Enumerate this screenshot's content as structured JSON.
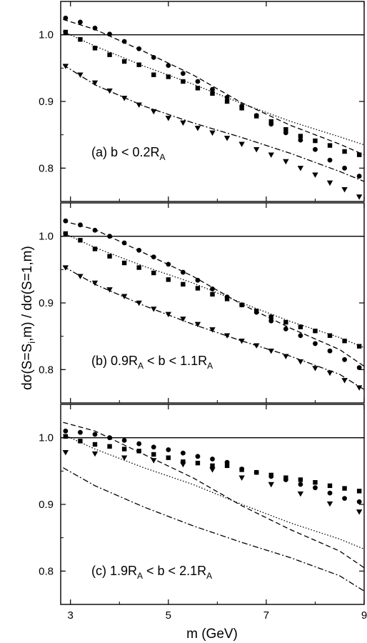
{
  "xlabel": "m (GeV)",
  "ylabel": "dσ(S=S_i,m) / dσ(S=1,m)",
  "ylabel_parts": {
    "pre": "dσ(S=S",
    "sub": "i",
    "post": ",m) / dσ(S=1,m)"
  },
  "colors": {
    "axes": "#000000",
    "data": "#000000",
    "background": "#ffffff"
  },
  "chart_data": [
    {
      "type": "scatter",
      "panel_label": {
        "pre": "(a)   b < 0.2R",
        "sub": "A",
        "post": ""
      },
      "xlim": [
        2.8,
        9.0
      ],
      "ylim": [
        0.75,
        1.05
      ],
      "xticks": [
        3,
        5,
        7,
        9
      ],
      "yticks": [
        0.8,
        0.9,
        1.0
      ],
      "xtick_labels": [
        "",
        "",
        "",
        ""
      ],
      "ytick_labels": [
        "0.8",
        "0.9",
        "1.0"
      ],
      "reference_line": 1.0,
      "curves": [
        {
          "style": "dashed",
          "x": [
            2.85,
            3.5,
            4.5,
            5.5,
            6.5,
            7.5,
            8.5,
            9.0
          ],
          "y": [
            1.023,
            1.008,
            0.975,
            0.94,
            0.898,
            0.864,
            0.836,
            0.82
          ]
        },
        {
          "style": "dotted",
          "x": [
            2.85,
            3.5,
            4.5,
            5.5,
            6.5,
            7.5,
            8.5,
            9.0
          ],
          "y": [
            1.005,
            0.983,
            0.953,
            0.926,
            0.897,
            0.87,
            0.847,
            0.835
          ]
        },
        {
          "style": "dashdot",
          "x": [
            2.85,
            3.5,
            4.5,
            5.5,
            6.5,
            7.5,
            8.5,
            9.0
          ],
          "y": [
            0.955,
            0.925,
            0.893,
            0.868,
            0.846,
            0.822,
            0.795,
            0.78
          ]
        }
      ],
      "series": [
        {
          "marker": "circle",
          "x": [
            2.9,
            3.2,
            3.5,
            3.8,
            4.1,
            4.4,
            4.7,
            5.0,
            5.3,
            5.6,
            5.9,
            6.2,
            6.5,
            6.8,
            7.1,
            7.4,
            7.7,
            8.0,
            8.3,
            8.6,
            8.9
          ],
          "y": [
            1.025,
            1.019,
            1.01,
            1.001,
            0.99,
            0.979,
            0.966,
            0.954,
            0.942,
            0.93,
            0.918,
            0.906,
            0.893,
            0.879,
            0.866,
            0.853,
            0.842,
            0.828,
            0.812,
            0.8,
            0.788
          ]
        },
        {
          "marker": "square",
          "x": [
            2.9,
            3.2,
            3.5,
            3.8,
            4.1,
            4.4,
            4.7,
            5.0,
            5.3,
            5.6,
            5.9,
            6.2,
            6.5,
            6.8,
            7.1,
            7.4,
            7.7,
            8.0,
            8.3,
            8.6,
            8.9
          ],
          "y": [
            1.004,
            0.993,
            0.98,
            0.97,
            0.96,
            0.955,
            0.94,
            0.937,
            0.93,
            0.92,
            0.912,
            0.9,
            0.89,
            0.878,
            0.87,
            0.858,
            0.848,
            0.841,
            0.834,
            0.825,
            0.82
          ]
        },
        {
          "marker": "triangle-down",
          "x": [
            2.9,
            3.2,
            3.5,
            3.8,
            4.1,
            4.4,
            4.7,
            5.0,
            5.3,
            5.6,
            5.9,
            6.2,
            6.5,
            6.8,
            7.1,
            7.4,
            7.7,
            8.0,
            8.3,
            8.6,
            8.9
          ],
          "y": [
            0.953,
            0.94,
            0.928,
            0.916,
            0.905,
            0.895,
            0.885,
            0.875,
            0.868,
            0.86,
            0.853,
            0.845,
            0.836,
            0.828,
            0.82,
            0.81,
            0.8,
            0.79,
            0.778,
            0.768,
            0.757
          ]
        }
      ]
    },
    {
      "type": "scatter",
      "panel_label": {
        "pre": "(b)   0.9R",
        "sub": "A",
        "post": " < b < 1.1R",
        "sub2": "A"
      },
      "xlim": [
        2.8,
        9.0
      ],
      "ylim": [
        0.75,
        1.05
      ],
      "xticks": [
        3,
        5,
        7,
        9
      ],
      "yticks": [
        0.8,
        0.9,
        1.0
      ],
      "xtick_labels": [
        "",
        "",
        "",
        ""
      ],
      "ytick_labels": [
        "0.8",
        "0.9",
        "1.0"
      ],
      "reference_line": 1.0,
      "curves": [
        {
          "style": "dashed",
          "x": [
            2.85,
            3.5,
            4.5,
            5.5,
            6.5,
            7.5,
            8.5,
            9.0
          ],
          "y": [
            1.023,
            1.01,
            0.975,
            0.94,
            0.898,
            0.862,
            0.83,
            0.805
          ]
        },
        {
          "style": "dotted",
          "x": [
            2.85,
            3.5,
            4.5,
            5.5,
            6.5,
            7.5,
            8.5,
            9.0
          ],
          "y": [
            1.005,
            0.983,
            0.955,
            0.93,
            0.9,
            0.872,
            0.848,
            0.833
          ]
        },
        {
          "style": "dashdot",
          "x": [
            2.85,
            3.5,
            4.5,
            5.5,
            6.5,
            7.5,
            8.5,
            9.0
          ],
          "y": [
            0.955,
            0.928,
            0.896,
            0.868,
            0.843,
            0.82,
            0.793,
            0.77
          ]
        }
      ],
      "series": [
        {
          "marker": "circle",
          "x": [
            2.9,
            3.2,
            3.5,
            3.8,
            4.1,
            4.4,
            4.7,
            5.0,
            5.3,
            5.6,
            5.9,
            6.2,
            6.5,
            6.8,
            7.1,
            7.4,
            7.7,
            8.0,
            8.3,
            8.6,
            8.9
          ],
          "y": [
            1.023,
            1.017,
            1.009,
            1.0,
            0.99,
            0.979,
            0.969,
            0.958,
            0.946,
            0.934,
            0.921,
            0.909,
            0.897,
            0.886,
            0.873,
            0.861,
            0.851,
            0.839,
            0.828,
            0.815,
            0.803
          ]
        },
        {
          "marker": "square",
          "x": [
            2.9,
            3.2,
            3.5,
            3.8,
            4.1,
            4.4,
            4.7,
            5.0,
            5.3,
            5.6,
            5.9,
            6.2,
            6.5,
            6.8,
            7.1,
            7.4,
            7.7,
            8.0,
            8.3,
            8.6,
            8.9
          ],
          "y": [
            1.004,
            0.994,
            0.981,
            0.97,
            0.96,
            0.953,
            0.945,
            0.935,
            0.928,
            0.922,
            0.913,
            0.906,
            0.897,
            0.888,
            0.879,
            0.871,
            0.864,
            0.858,
            0.851,
            0.843,
            0.835
          ]
        },
        {
          "marker": "triangle-down",
          "x": [
            2.9,
            3.2,
            3.5,
            3.8,
            4.1,
            4.4,
            4.7,
            5.0,
            5.3,
            5.6,
            5.9,
            6.2,
            6.5,
            6.8,
            7.1,
            7.4,
            7.7,
            8.0,
            8.3,
            8.6,
            8.9
          ],
          "y": [
            0.953,
            0.94,
            0.93,
            0.92,
            0.91,
            0.9,
            0.891,
            0.883,
            0.876,
            0.868,
            0.86,
            0.851,
            0.843,
            0.836,
            0.828,
            0.82,
            0.812,
            0.802,
            0.795,
            0.784,
            0.773
          ]
        }
      ]
    },
    {
      "type": "scatter",
      "panel_label": {
        "pre": "(c)   1.9R",
        "sub": "A",
        "post": " < b < 2.1R",
        "sub2": "A"
      },
      "xlim": [
        2.8,
        9.0
      ],
      "ylim": [
        0.75,
        1.05
      ],
      "xticks": [
        3,
        5,
        7,
        9
      ],
      "yticks": [
        0.8,
        0.9,
        1.0
      ],
      "xtick_labels": [
        "3",
        "5",
        "7",
        "9"
      ],
      "ytick_labels": [
        "0.8",
        "0.9",
        "1.0"
      ],
      "reference_line": 1.0,
      "curves": [
        {
          "style": "dashed",
          "x": [
            2.85,
            3.5,
            4.5,
            5.5,
            6.5,
            7.5,
            8.5,
            9.0
          ],
          "y": [
            1.023,
            1.01,
            0.975,
            0.94,
            0.898,
            0.862,
            0.83,
            0.805
          ]
        },
        {
          "style": "dotted",
          "x": [
            2.85,
            3.5,
            4.5,
            5.5,
            6.5,
            7.5,
            8.5,
            9.0
          ],
          "y": [
            1.005,
            0.983,
            0.955,
            0.93,
            0.9,
            0.872,
            0.848,
            0.833
          ]
        },
        {
          "style": "dashdot",
          "x": [
            2.85,
            3.5,
            4.5,
            5.5,
            6.5,
            7.5,
            8.5,
            9.0
          ],
          "y": [
            0.955,
            0.928,
            0.896,
            0.868,
            0.843,
            0.82,
            0.793,
            0.77
          ]
        }
      ],
      "series": [
        {
          "marker": "circle",
          "x": [
            2.9,
            3.2,
            3.5,
            3.8,
            4.1,
            4.4,
            4.7,
            5.0,
            5.3,
            5.6,
            5.9,
            6.2,
            6.5,
            6.8,
            7.1,
            7.4,
            7.7,
            8.0,
            8.3,
            8.6,
            8.9
          ],
          "y": [
            1.01,
            1.008,
            1.005,
            1.0,
            0.996,
            0.991,
            0.986,
            0.982,
            0.977,
            0.972,
            0.968,
            0.963,
            0.953,
            0.948,
            0.942,
            0.937,
            0.93,
            0.925,
            0.917,
            0.909,
            0.904
          ]
        },
        {
          "marker": "square",
          "x": [
            2.9,
            3.2,
            3.5,
            3.8,
            4.1,
            4.4,
            4.7,
            5.0,
            5.3,
            5.6,
            5.9,
            6.2,
            6.5,
            6.8,
            7.1,
            7.4,
            7.7,
            8.0,
            8.3,
            8.6,
            8.9
          ],
          "y": [
            1.002,
            0.995,
            0.99,
            0.987,
            0.983,
            0.98,
            0.975,
            0.97,
            0.964,
            0.962,
            0.958,
            0.958,
            0.952,
            0.948,
            0.944,
            0.94,
            0.937,
            0.933,
            0.928,
            0.924,
            0.92
          ]
        },
        {
          "marker": "triangle-down",
          "x": [
            2.9,
            3.5,
            4.1,
            4.7,
            5.3,
            5.9,
            6.5,
            7.1,
            7.7,
            8.3,
            8.9
          ],
          "y": [
            0.978,
            0.976,
            0.97,
            0.966,
            0.96,
            0.952,
            0.94,
            0.93,
            0.916,
            0.901,
            0.889
          ]
        }
      ]
    }
  ]
}
